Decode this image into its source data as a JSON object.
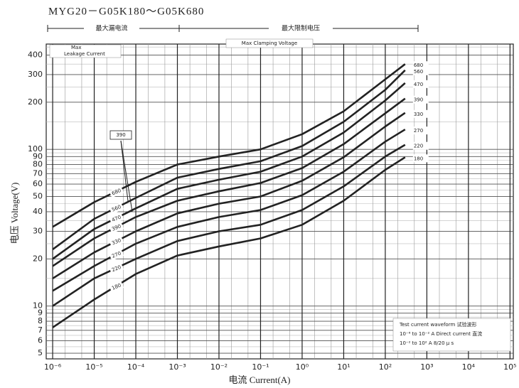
{
  "chart_data": {
    "type": "line",
    "title": "MYG20－G05K180～G05K680",
    "x_label": "电流 Current(A)",
    "y_label": "电压 Voltage(V)",
    "region_labels": [
      "最大漏电流",
      "最大限制电压"
    ],
    "region_notes": [
      "Max",
      "Leakage Current",
      "Max Clamping Voltage"
    ],
    "callout": "390",
    "notes": [
      "Test current waveform 试验波形",
      "10⁻⁶ to 10⁻² A Direct current 直流",
      "10⁻² to 10² A 8/20 μ s"
    ],
    "x_scale": "log",
    "y_scale": "log",
    "grid": true,
    "color": "#222222",
    "x": [
      1e-06,
      1e-05,
      0.0001,
      0.001,
      0.01,
      0.1,
      1,
      10,
      100,
      300
    ],
    "series": [
      {
        "name": "680",
        "color": "#222222",
        "values": [
          32,
          46,
          62,
          80,
          90,
          100,
          125,
          175,
          280,
          350
        ]
      },
      {
        "name": "560",
        "color": "#222222",
        "values": [
          23,
          36,
          49,
          66,
          75,
          84,
          105,
          150,
          240,
          320
        ]
      },
      {
        "name": "470",
        "color": "#222222",
        "values": [
          20,
          31,
          42,
          56,
          64,
          72,
          90,
          128,
          205,
          265
        ]
      },
      {
        "name": "390",
        "color": "#222222",
        "values": [
          18,
          27,
          37,
          47,
          54,
          61,
          76,
          108,
          170,
          211
        ]
      },
      {
        "name": "330",
        "color": "#222222",
        "values": [
          15,
          22,
          30,
          39,
          45,
          50,
          63,
          89,
          140,
          171
        ]
      },
      {
        "name": "270",
        "color": "#222222",
        "values": [
          12.5,
          18,
          25,
          32,
          37,
          41,
          51,
          72,
          112,
          134
        ]
      },
      {
        "name": "220",
        "color": "#222222",
        "values": [
          10,
          15,
          20,
          26,
          30,
          33,
          41,
          58,
          90,
          107
        ]
      },
      {
        "name": "180",
        "color": "#222222",
        "values": [
          7.3,
          11,
          16,
          21,
          24,
          27,
          33,
          47,
          74,
          89
        ]
      }
    ],
    "xlim": [
      7e-07,
      120000
    ],
    "ylim": [
      4.6,
      470
    ],
    "xticks": [
      {
        "value": 1e-06,
        "label": "10⁻⁶"
      },
      {
        "value": 1e-05,
        "label": "10⁻⁵"
      },
      {
        "value": 0.0001,
        "label": "10⁻⁴"
      },
      {
        "value": 0.001,
        "label": "10⁻³"
      },
      {
        "value": 0.01,
        "label": "10⁻²"
      },
      {
        "value": 0.1,
        "label": "10⁻¹"
      },
      {
        "value": 1,
        "label": "10⁰"
      },
      {
        "value": 10,
        "label": "10¹"
      },
      {
        "value": 100,
        "label": "10²"
      },
      {
        "value": 1000,
        "label": "10³"
      },
      {
        "value": 10000,
        "label": "10⁴"
      },
      {
        "value": 100000,
        "label": "10⁵"
      }
    ],
    "yticks": [
      5,
      6,
      7,
      8,
      9,
      10,
      20,
      30,
      40,
      50,
      60,
      70,
      80,
      90,
      100,
      200,
      300,
      400
    ]
  }
}
